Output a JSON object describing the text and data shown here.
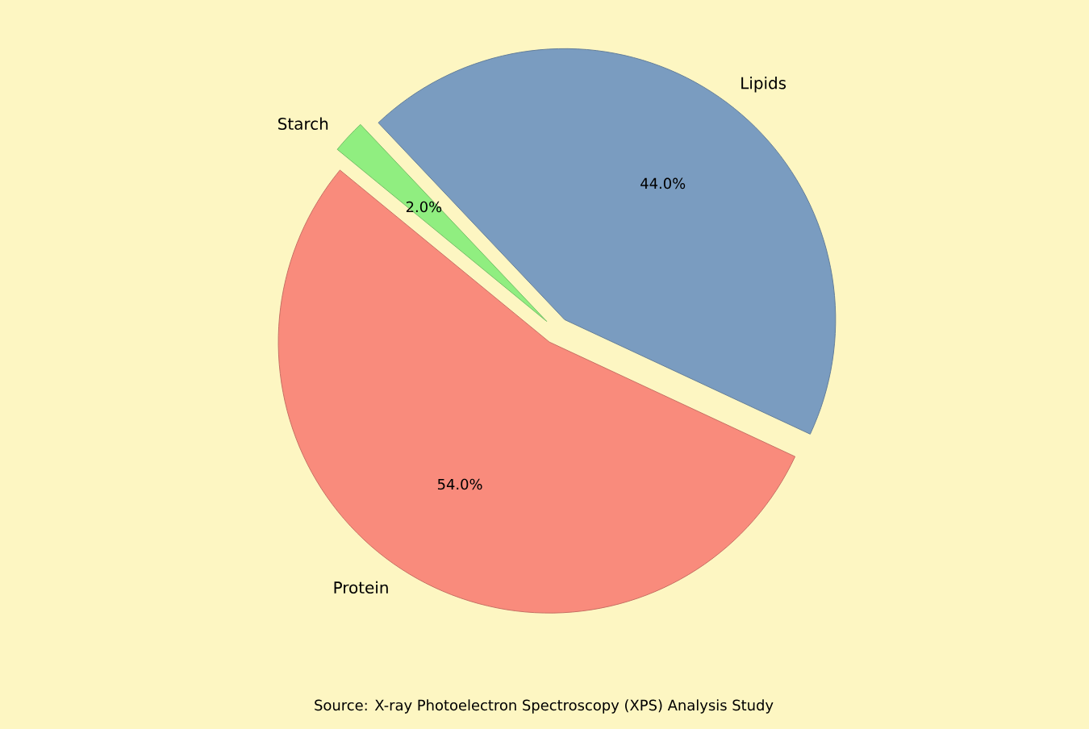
{
  "chart_data": {
    "type": "pie",
    "categories": [
      "Lipids",
      "Starch",
      "Protein"
    ],
    "values": [
      44,
      2,
      54
    ],
    "colors": [
      "#7a9cc0",
      "#90ee80",
      "#f98b7c"
    ],
    "value_labels": [
      "44.0%",
      "2.0%",
      "54.0%"
    ],
    "annotations": [
      "Source: X-ray Photoelectron Spectroscopy (XPS) Analysis Study"
    ]
  }
}
